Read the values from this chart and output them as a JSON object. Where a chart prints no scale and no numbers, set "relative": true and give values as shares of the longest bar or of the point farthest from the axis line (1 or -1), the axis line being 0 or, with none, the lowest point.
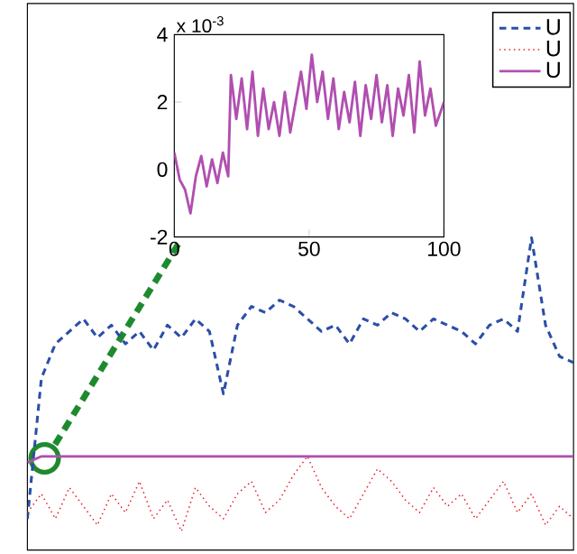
{
  "chart_data": [
    {
      "type": "line",
      "relative": true,
      "legend": "top right",
      "marker": "none",
      "categories": [
        null,
        null,
        null,
        null,
        null,
        null,
        null,
        null,
        null,
        null,
        null,
        null,
        null,
        null,
        null,
        null,
        null,
        null,
        null,
        null,
        null,
        null,
        null,
        null,
        null,
        null,
        null,
        null,
        null,
        null,
        null,
        null,
        null,
        null,
        null,
        null,
        null,
        null,
        null,
        null
      ],
      "series": [
        {
          "name": "U",
          "color": "#2b4ea8",
          "line_style": "dashed",
          "values": [
            0.1,
            0.55,
            0.66,
            0.7,
            0.74,
            0.68,
            0.72,
            0.66,
            0.7,
            0.64,
            0.72,
            0.68,
            0.74,
            0.7,
            0.5,
            0.72,
            0.78,
            0.76,
            0.8,
            0.78,
            0.74,
            0.7,
            0.72,
            0.66,
            0.74,
            0.72,
            0.76,
            0.74,
            0.7,
            0.74,
            0.72,
            0.7,
            0.66,
            0.72,
            0.74,
            0.7,
            1.0,
            0.72,
            0.62,
            0.6
          ]
        },
        {
          "name": "U",
          "color": "#e8202a",
          "line_style": "dotted",
          "values": [
            0.12,
            0.18,
            0.1,
            0.2,
            0.14,
            0.08,
            0.18,
            0.12,
            0.22,
            0.1,
            0.16,
            0.06,
            0.2,
            0.14,
            0.1,
            0.18,
            0.22,
            0.12,
            0.16,
            0.24,
            0.3,
            0.2,
            0.14,
            0.1,
            0.18,
            0.26,
            0.22,
            0.16,
            0.12,
            0.2,
            0.14,
            0.18,
            0.1,
            0.16,
            0.22,
            0.12,
            0.18,
            0.08,
            0.14,
            0.1
          ]
        },
        {
          "name": "U",
          "color": "#b04fb0",
          "line_style": "solid",
          "values": [
            0.28,
            0.3,
            0.3,
            0.3,
            0.3,
            0.3,
            0.3,
            0.3,
            0.3,
            0.3,
            0.3,
            0.3,
            0.3,
            0.3,
            0.3,
            0.3,
            0.3,
            0.3,
            0.3,
            0.3,
            0.3,
            0.3,
            0.3,
            0.3,
            0.3,
            0.3,
            0.3,
            0.3,
            0.3,
            0.3,
            0.3,
            0.3,
            0.3,
            0.3,
            0.3,
            0.3,
            0.3,
            0.3,
            0.3,
            0.3
          ]
        }
      ]
    },
    {
      "type": "line",
      "marker": "none",
      "annotations": [
        "x 10$^{-3}$"
      ],
      "xlim": [
        0,
        100
      ],
      "ylim": [
        -2,
        4
      ],
      "xticks": [
        0,
        50,
        100
      ],
      "yticks": [
        -2,
        0,
        2,
        4
      ],
      "series": [
        {
          "color": "#b04fb0",
          "line_style": "solid",
          "x": [
            0,
            2,
            4,
            6,
            8,
            10,
            12,
            14,
            16,
            18,
            20,
            21,
            23,
            25,
            27,
            29,
            31,
            33,
            35,
            37,
            39,
            41,
            43,
            45,
            47,
            49,
            51,
            53,
            55,
            57,
            59,
            61,
            63,
            65,
            67,
            69,
            71,
            73,
            75,
            77,
            79,
            81,
            83,
            85,
            87,
            89,
            91,
            93,
            95,
            97,
            100
          ],
          "values": [
            0.5,
            -0.3,
            -0.6,
            -1.3,
            -0.2,
            0.4,
            -0.5,
            0.3,
            -0.4,
            0.5,
            -0.2,
            2.8,
            1.5,
            2.7,
            1.2,
            2.9,
            1.0,
            2.4,
            1.2,
            2.0,
            1.0,
            2.3,
            1.1,
            2.0,
            2.9,
            1.8,
            3.4,
            2.0,
            2.9,
            1.5,
            2.7,
            1.2,
            2.3,
            1.4,
            2.6,
            1.0,
            2.5,
            1.5,
            2.8,
            1.4,
            2.5,
            1.0,
            2.4,
            1.6,
            2.8,
            1.1,
            3.2,
            1.6,
            2.4,
            1.3,
            2.0
          ]
        }
      ]
    }
  ]
}
